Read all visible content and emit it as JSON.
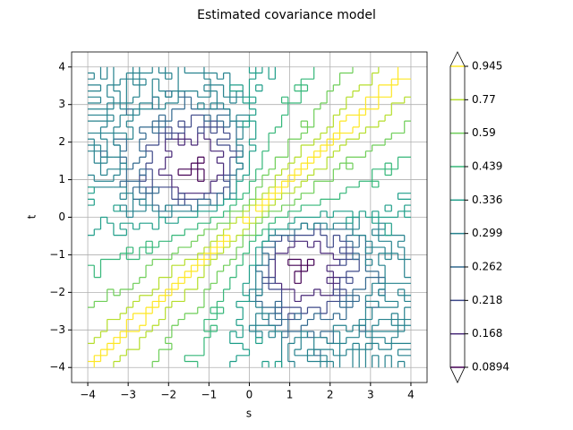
{
  "chart_data": {
    "type": "contour",
    "title": "Estimated covariance model",
    "xlabel": "s",
    "ylabel": "t",
    "xlim": [
      -4.4,
      4.4
    ],
    "ylim": [
      -4.4,
      4.4
    ],
    "xticks": [
      {
        "value": -4,
        "label": "−4"
      },
      {
        "value": -3,
        "label": "−3"
      },
      {
        "value": -2,
        "label": "−2"
      },
      {
        "value": -1,
        "label": "−1"
      },
      0,
      1,
      2,
      3,
      4
    ],
    "yticks": [
      {
        "value": -4,
        "label": "−4"
      },
      {
        "value": -3,
        "label": "−3"
      },
      {
        "value": -2,
        "label": "−2"
      },
      {
        "value": -1,
        "label": "−1"
      },
      0,
      1,
      2,
      3,
      4
    ],
    "grid": true,
    "levels": [
      0.0894,
      0.168,
      0.218,
      0.262,
      0.299,
      0.336,
      0.439,
      0.59,
      0.77,
      0.945
    ],
    "colors": [
      "#440154",
      "#482878",
      "#3e4989",
      "#31688e",
      "#26828e",
      "#1f9e89",
      "#35b779",
      "#6ece58",
      "#b5de2b",
      "#fde725"
    ],
    "colorbar_extend": "both"
  }
}
